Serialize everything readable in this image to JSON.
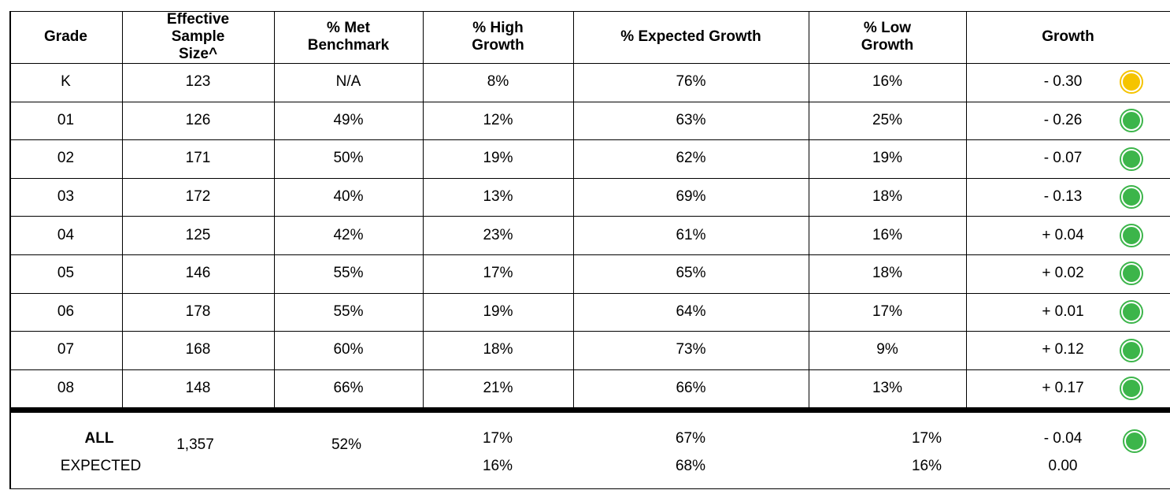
{
  "table": {
    "columns": [
      "Grade",
      "Effective Sample Size^",
      "% Met Benchmark",
      "% High Growth",
      "% Expected Growth",
      "% Low Growth",
      "Growth"
    ],
    "rows": [
      [
        "K",
        "123",
        "N/A",
        "8%",
        "76%",
        "16%",
        "- 0.30"
      ],
      [
        "01",
        "126",
        "49%",
        "12%",
        "63%",
        "25%",
        "- 0.26"
      ],
      [
        "02",
        "171",
        "50%",
        "19%",
        "62%",
        "19%",
        "- 0.07"
      ],
      [
        "03",
        "172",
        "40%",
        "13%",
        "69%",
        "18%",
        "- 0.13"
      ],
      [
        "04",
        "125",
        "42%",
        "23%",
        "61%",
        "16%",
        "+ 0.04"
      ],
      [
        "05",
        "146",
        "55%",
        "17%",
        "65%",
        "18%",
        "+ 0.02"
      ],
      [
        "06",
        "178",
        "55%",
        "19%",
        "64%",
        "17%",
        "+ 0.01"
      ],
      [
        "07",
        "168",
        "60%",
        "18%",
        "73%",
        "9%",
        "+ 0.12"
      ],
      [
        "08",
        "148",
        "66%",
        "21%",
        "66%",
        "13%",
        "+ 0.17"
      ]
    ],
    "indicators": [
      "#f5c400",
      "#3cb54a",
      "#3cb54a",
      "#3cb54a",
      "#3cb54a",
      "#3cb54a",
      "#3cb54a",
      "#3cb54a",
      "#3cb54a"
    ],
    "all": {
      "label": "ALL",
      "values": [
        "1,357",
        "52%",
        "17%",
        "67%",
        "17%",
        "- 0.04"
      ],
      "indicator": "#3cb54a"
    },
    "expected": {
      "label": "EXPECTED",
      "values": [
        "16%",
        "68%",
        "16%",
        "0.00"
      ]
    }
  }
}
